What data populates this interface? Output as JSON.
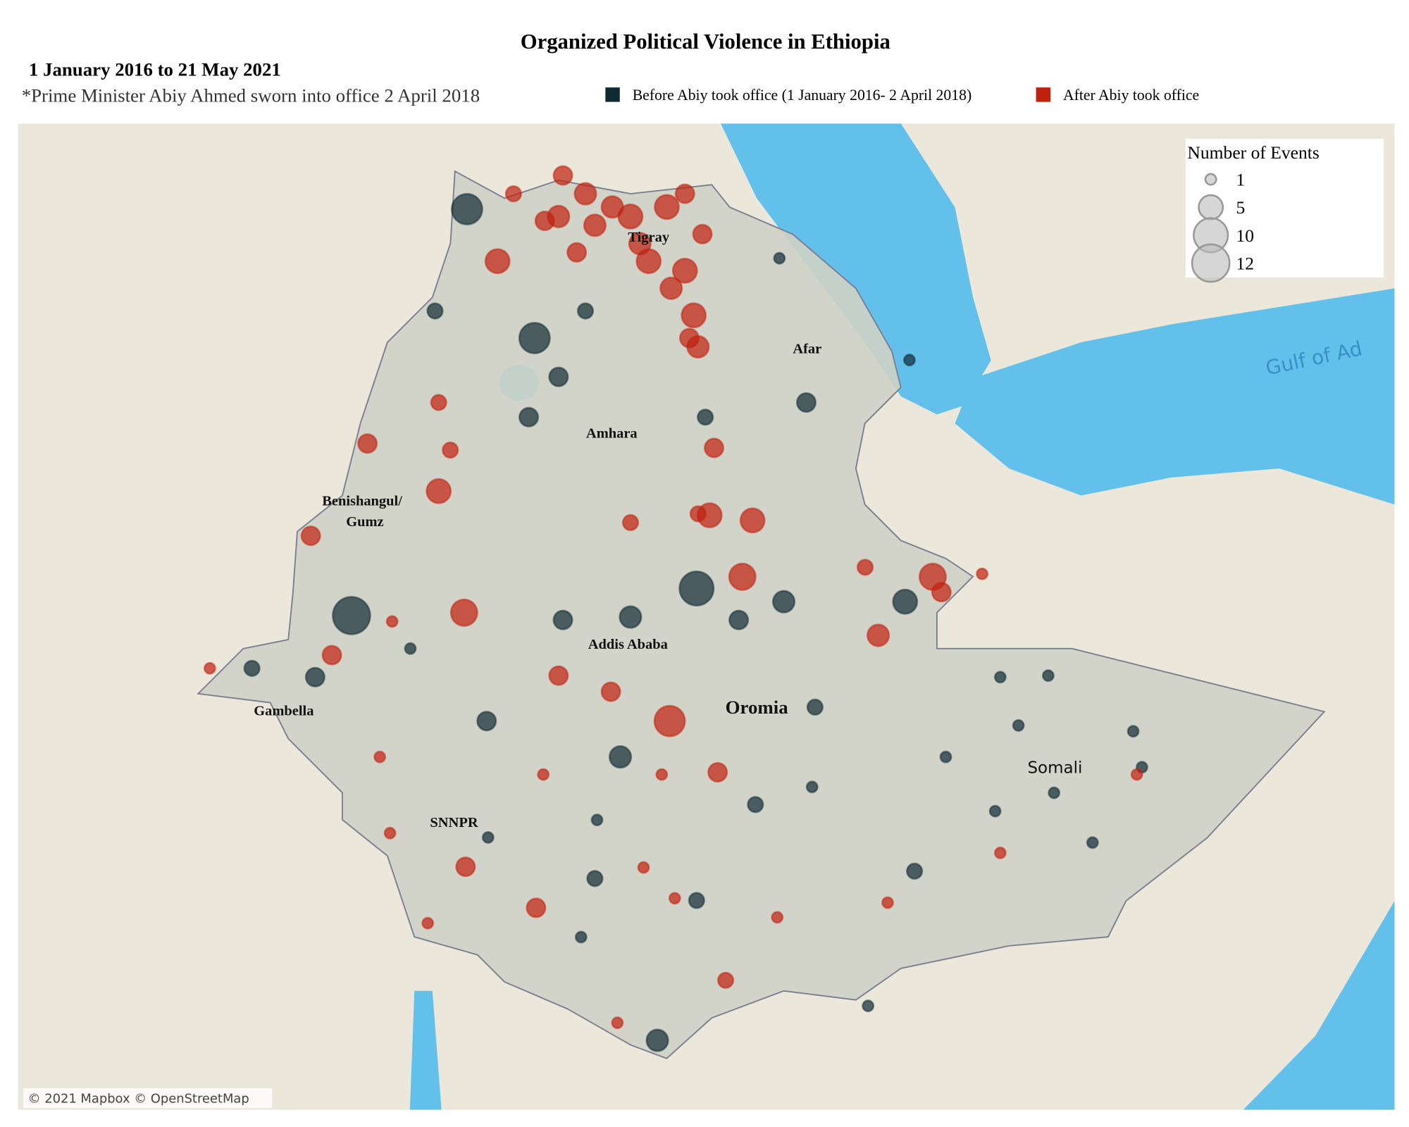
{
  "header": {
    "title": "Organized Political Violence in Ethiopia",
    "period": "1 January 2016 to 21 May 2021",
    "note": "*Prime Minister Abiy Ahmed sworn into office 2 April 2018"
  },
  "legend": {
    "groups": [
      {
        "name": "Before Abiy took office (1 January 2016- 2 April 2018)",
        "color": "#0f2a33"
      },
      {
        "name": "After Abiy took office",
        "color": "#c0200e"
      }
    ]
  },
  "size_legend": {
    "title": "Number of Events",
    "sizes": [
      1,
      5,
      10,
      12
    ]
  },
  "map_labels": [
    "Tigray",
    "Afar",
    "Amhara",
    "Benishangul/",
    "Gumz",
    "Addis Ababa",
    "Oromia",
    "Gambella",
    "SNNPR",
    "Somali",
    "Gulf of Ad"
  ],
  "attribution": "© 2021 Mapbox © OpenStreetMap",
  "series": [
    {
      "group": 0,
      "points": [
        [
          37.18,
          14.83,
          8
        ],
        [
          38.11,
          13.07,
          8
        ],
        [
          36.74,
          13.44,
          2
        ],
        [
          41.85,
          12.19,
          3
        ],
        [
          38.44,
          12.54,
          3
        ],
        [
          38.03,
          11.99,
          3
        ],
        [
          40.34,
          9.65,
          10
        ],
        [
          35.59,
          9.28,
          12
        ],
        [
          41.54,
          9.47,
          4
        ],
        [
          43.21,
          9.47,
          5
        ],
        [
          39.43,
          9.26,
          4
        ],
        [
          38.5,
          9.22,
          3
        ],
        [
          37.45,
          7.84,
          3
        ],
        [
          39.29,
          7.35,
          4
        ],
        [
          39.8,
          3.48,
          4
        ],
        [
          45.26,
          6.86,
          1
        ],
        [
          44.52,
          8.44,
          1
        ],
        [
          43.34,
          5.79,
          2
        ],
        [
          41.97,
          8.03,
          2
        ],
        [
          40.92,
          9.22,
          3
        ],
        [
          35.09,
          8.44,
          3
        ],
        [
          34.22,
          8.56,
          2
        ],
        [
          41.15,
          6.7,
          2
        ],
        [
          41.93,
          6.94,
          1
        ],
        [
          46.47,
          7.21,
          1
        ],
        [
          45.79,
          6.18,
          1
        ],
        [
          44.45,
          6.61,
          1
        ],
        [
          40.34,
          5.39,
          2
        ],
        [
          42.7,
          3.95,
          1
        ],
        [
          38.94,
          5.69,
          2
        ],
        [
          38.75,
          4.89,
          1
        ],
        [
          38.97,
          6.49,
          1
        ],
        [
          37.47,
          6.25,
          1
        ],
        [
          44.77,
          7.78,
          1
        ],
        [
          45.18,
          8.46,
          1
        ],
        [
          46.35,
          7.7,
          1
        ],
        [
          43.77,
          7.35,
          1
        ],
        [
          43.27,
          12.77,
          1
        ],
        [
          41.48,
          14.16,
          1
        ],
        [
          38.81,
          13.44,
          2
        ],
        [
          40.46,
          11.99,
          2
        ],
        [
          36.4,
          8.83,
          1
        ]
      ]
    },
    {
      "group": 1,
      "points": [
        [
          38.5,
          15.29,
          3
        ],
        [
          38.81,
          15.04,
          4
        ],
        [
          39.43,
          14.73,
          5
        ],
        [
          39.93,
          14.86,
          5
        ],
        [
          40.18,
          15.04,
          3
        ],
        [
          39.68,
          14.12,
          5
        ],
        [
          40.18,
          13.99,
          5
        ],
        [
          40.3,
          13.38,
          5
        ],
        [
          40.36,
          12.95,
          4
        ],
        [
          38.69,
          14.24,
          3
        ],
        [
          38.94,
          14.61,
          4
        ],
        [
          38.25,
          14.67,
          3
        ],
        [
          37.82,
          15.04,
          2
        ],
        [
          37.6,
          14.12,
          5
        ],
        [
          38.44,
          14.73,
          4
        ],
        [
          39.18,
          14.86,
          4
        ],
        [
          39.56,
          14.36,
          4
        ],
        [
          39.99,
          13.75,
          4
        ],
        [
          40.42,
          14.49,
          3
        ],
        [
          40.24,
          13.07,
          3
        ],
        [
          37.14,
          9.32,
          6
        ],
        [
          42.66,
          9.94,
          2
        ],
        [
          43.59,
          9.81,
          6
        ],
        [
          43.71,
          9.6,
          3
        ],
        [
          42.84,
          9.01,
          4
        ],
        [
          39.97,
          7.84,
          8
        ],
        [
          40.97,
          9.81,
          6
        ],
        [
          41.11,
          10.58,
          5
        ],
        [
          40.52,
          10.65,
          5
        ],
        [
          40.58,
          11.57,
          3
        ],
        [
          36.79,
          10.98,
          5
        ],
        [
          35.81,
          11.63,
          3
        ],
        [
          36.79,
          12.19,
          2
        ],
        [
          36.95,
          11.54,
          2
        ],
        [
          35.03,
          10.37,
          3
        ],
        [
          35.32,
          8.74,
          3
        ],
        [
          33.64,
          8.56,
          1
        ],
        [
          38.44,
          8.46,
          3
        ],
        [
          39.16,
          8.24,
          3
        ],
        [
          40.63,
          7.14,
          3
        ],
        [
          46.4,
          7.11,
          1
        ],
        [
          44.52,
          6.04,
          1
        ],
        [
          42.97,
          5.36,
          1
        ],
        [
          41.45,
          5.16,
          1
        ],
        [
          38.13,
          5.29,
          3
        ],
        [
          37.16,
          5.85,
          3
        ],
        [
          36.12,
          6.31,
          1
        ],
        [
          35.98,
          7.35,
          1
        ],
        [
          36.64,
          5.08,
          1
        ],
        [
          39.25,
          3.72,
          1
        ],
        [
          40.74,
          4.3,
          2
        ],
        [
          39.61,
          5.84,
          1
        ],
        [
          40.04,
          5.42,
          1
        ],
        [
          38.23,
          7.11,
          1
        ],
        [
          39.86,
          7.11,
          1
        ],
        [
          39.43,
          10.55,
          2
        ],
        [
          40.36,
          10.67,
          2
        ],
        [
          44.27,
          9.85,
          1
        ],
        [
          36.15,
          9.2,
          1
        ]
      ]
    }
  ]
}
